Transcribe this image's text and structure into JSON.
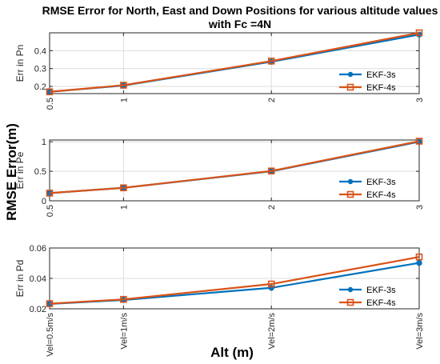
{
  "figure": {
    "title_line1": "RMSE Error for North, East and Down Positions for various altitude values",
    "title_line2": "with Fc =4N",
    "sup_ylabel": "RMSE Error(m)",
    "sup_xlabel": "Alt (m)"
  },
  "colors": {
    "ekf3": "#0072BD",
    "ekf4": "#D95319",
    "grid": "#dcdcdc",
    "axis": "#262626"
  },
  "chart_data": [
    {
      "type": "line",
      "ylabel": "Err in Pn",
      "x": [
        0.5,
        1,
        2,
        3
      ],
      "xlim": [
        0.5,
        3
      ],
      "ylim": [
        0.16,
        0.5
      ],
      "xticks": [
        0.5,
        1,
        2,
        3
      ],
      "xtick_labels": [
        "0.5",
        "1",
        "2",
        "3"
      ],
      "yticks": [
        0.2,
        0.3,
        0.4
      ],
      "ytick_labels": [
        "0.2",
        "0.3",
        "0.4"
      ],
      "grid": true,
      "legend_position": "bottom-right",
      "series": [
        {
          "name": "EKF-3s",
          "marker": "circle",
          "values": [
            0.17,
            0.205,
            0.338,
            0.49
          ]
        },
        {
          "name": "EKF-4s",
          "marker": "square",
          "values": [
            0.17,
            0.207,
            0.342,
            0.5
          ]
        }
      ]
    },
    {
      "type": "line",
      "ylabel": "Err in Pe",
      "x": [
        0.5,
        1,
        2,
        3
      ],
      "xlim": [
        0.5,
        3
      ],
      "ylim": [
        0,
        1.03
      ],
      "xticks": [
        0.5,
        1,
        2,
        3
      ],
      "xtick_labels": [
        "0.5",
        "1",
        "2",
        "3"
      ],
      "yticks": [
        0,
        0.5,
        1
      ],
      "ytick_labels": [
        "0",
        "0.5",
        "1"
      ],
      "grid": true,
      "legend_position": "bottom-right",
      "series": [
        {
          "name": "EKF-3s",
          "marker": "circle",
          "values": [
            0.13,
            0.22,
            0.5,
            1.0
          ]
        },
        {
          "name": "EKF-4s",
          "marker": "square",
          "values": [
            0.13,
            0.22,
            0.505,
            1.01
          ]
        }
      ]
    },
    {
      "type": "line",
      "ylabel": "Err in Pd",
      "x": [
        0.5,
        1,
        2,
        3
      ],
      "xlim": [
        0.5,
        3
      ],
      "ylim": [
        0.02,
        0.06
      ],
      "xticks": [
        0.5,
        1,
        2,
        3
      ],
      "xtick_labels": [
        "Vel=0.5m/s",
        "Vel=1m/s",
        "Vel=2m/s",
        "Vel=3m/s"
      ],
      "yticks": [
        0.02,
        0.04,
        0.06
      ],
      "ytick_labels": [
        "0.02",
        "0.04",
        "0.06"
      ],
      "grid": true,
      "legend_position": "bottom-right",
      "series": [
        {
          "name": "EKF-3s",
          "marker": "circle",
          "values": [
            0.0232,
            0.0258,
            0.0338,
            0.0502
          ]
        },
        {
          "name": "EKF-4s",
          "marker": "square",
          "values": [
            0.0234,
            0.0262,
            0.0363,
            0.0541
          ]
        }
      ]
    }
  ]
}
